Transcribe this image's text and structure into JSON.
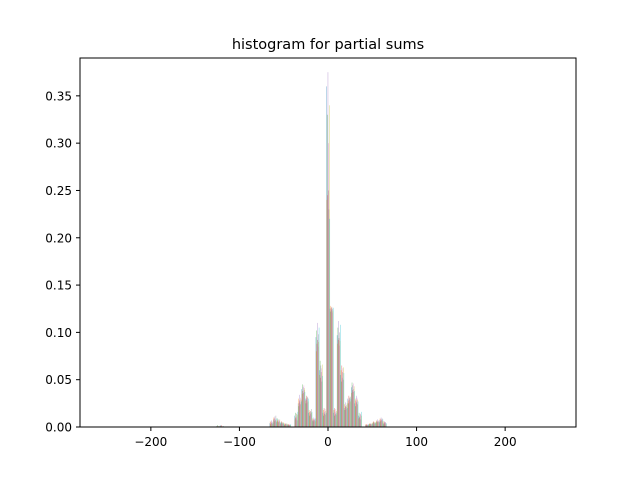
{
  "chart_data": {
    "type": "bar",
    "title": "histogram for partial sums",
    "xlabel": "",
    "ylabel": "",
    "xlim": [
      -280,
      280
    ],
    "ylim": [
      0,
      0.39
    ],
    "grid": false,
    "legend": "none",
    "xticks": [
      -200,
      -100,
      0,
      100,
      200
    ],
    "xtick_labels": [
      "−200",
      "−100",
      "0",
      "100",
      "200"
    ],
    "yticks": [
      0.0,
      0.05,
      0.1,
      0.15,
      0.2,
      0.25,
      0.3,
      0.35
    ],
    "ytick_labels": [
      "0.00",
      "0.05",
      "0.10",
      "0.15",
      "0.20",
      "0.25",
      "0.30",
      "0.35"
    ],
    "bar_opacity": 0.5,
    "series_colors": [
      "#1f77b4",
      "#ff7f0e",
      "#2ca02c",
      "#d62728",
      "#9467bd",
      "#8c564b",
      "#e377c2",
      "#7f7f7f",
      "#bcbd22",
      "#17becf"
    ],
    "bins": [
      {
        "x": -124,
        "values": [
          0.001,
          0.0,
          0.002,
          0.001,
          0.0,
          0.001,
          0.0,
          0.001,
          0.0,
          0.001
        ]
      },
      {
        "x": -120,
        "values": [
          0.002,
          0.001,
          0.001,
          0.002,
          0.001,
          0.0,
          0.001,
          0.0,
          0.001,
          0.001
        ]
      },
      {
        "x": -64,
        "values": [
          0.004,
          0.006,
          0.003,
          0.005,
          0.007,
          0.004,
          0.006,
          0.005,
          0.003,
          0.004
        ]
      },
      {
        "x": -60,
        "values": [
          0.008,
          0.01,
          0.006,
          0.009,
          0.011,
          0.007,
          0.008,
          0.012,
          0.006,
          0.009
        ]
      },
      {
        "x": -56,
        "values": [
          0.005,
          0.007,
          0.009,
          0.006,
          0.008,
          0.005,
          0.007,
          0.006,
          0.008,
          0.005
        ]
      },
      {
        "x": -52,
        "values": [
          0.004,
          0.003,
          0.005,
          0.006,
          0.004,
          0.005,
          0.003,
          0.004,
          0.005,
          0.004
        ]
      },
      {
        "x": -48,
        "values": [
          0.003,
          0.004,
          0.002,
          0.003,
          0.004,
          0.003,
          0.002,
          0.003,
          0.004,
          0.003
        ]
      },
      {
        "x": -44,
        "values": [
          0.002,
          0.003,
          0.002,
          0.003,
          0.002,
          0.002,
          0.003,
          0.002,
          0.002,
          0.003
        ]
      },
      {
        "x": -36,
        "values": [
          0.012,
          0.008,
          0.015,
          0.01,
          0.009,
          0.014,
          0.011,
          0.007,
          0.013,
          0.016
        ]
      },
      {
        "x": -32,
        "values": [
          0.025,
          0.03,
          0.022,
          0.028,
          0.034,
          0.026,
          0.031,
          0.024,
          0.029,
          0.027
        ]
      },
      {
        "x": -28,
        "values": [
          0.04,
          0.035,
          0.045,
          0.038,
          0.042,
          0.036,
          0.044,
          0.039,
          0.041,
          0.037
        ]
      },
      {
        "x": -24,
        "values": [
          0.03,
          0.028,
          0.025,
          0.033,
          0.029,
          0.031,
          0.026,
          0.032,
          0.027,
          0.03
        ]
      },
      {
        "x": -20,
        "values": [
          0.015,
          0.018,
          0.012,
          0.016,
          0.014,
          0.017,
          0.013,
          0.019,
          0.015,
          0.016
        ]
      },
      {
        "x": -16,
        "values": [
          0.007,
          0.009,
          0.006,
          0.008,
          0.01,
          0.007,
          0.009,
          0.008,
          0.006,
          0.009
        ]
      },
      {
        "x": -12,
        "values": [
          0.095,
          0.08,
          0.102,
          0.088,
          0.11,
          0.092,
          0.085,
          0.098,
          0.09,
          0.105
        ]
      },
      {
        "x": -8,
        "values": [
          0.06,
          0.055,
          0.07,
          0.052,
          0.065,
          0.058,
          0.062,
          0.048,
          0.066,
          0.054
        ]
      },
      {
        "x": -4,
        "values": [
          0.015,
          0.018,
          0.012,
          0.02,
          0.016,
          0.014,
          0.019,
          0.013,
          0.017,
          0.015
        ]
      },
      {
        "x": 0,
        "values": [
          0.36,
          0.24,
          0.33,
          0.245,
          0.375,
          0.25,
          0.3,
          0.23,
          0.34,
          0.22
        ]
      },
      {
        "x": 4,
        "values": [
          0.125,
          0.128,
          0.122,
          0.126,
          0.124,
          0.127,
          0.121,
          0.125,
          0.123,
          0.126
        ]
      },
      {
        "x": 8,
        "values": [
          0.015,
          0.018,
          0.012,
          0.02,
          0.016,
          0.014,
          0.019,
          0.013,
          0.017,
          0.015
        ]
      },
      {
        "x": 12,
        "values": [
          0.097,
          0.088,
          0.105,
          0.092,
          0.112,
          0.094,
          0.086,
          0.1,
          0.091,
          0.108
        ]
      },
      {
        "x": 16,
        "values": [
          0.055,
          0.06,
          0.048,
          0.065,
          0.052,
          0.058,
          0.062,
          0.05,
          0.063,
          0.057
        ]
      },
      {
        "x": 20,
        "values": [
          0.02,
          0.024,
          0.018,
          0.022,
          0.026,
          0.021,
          0.019,
          0.023,
          0.025,
          0.02
        ]
      },
      {
        "x": 24,
        "values": [
          0.03,
          0.028,
          0.025,
          0.033,
          0.029,
          0.031,
          0.026,
          0.032,
          0.027,
          0.03
        ]
      },
      {
        "x": 28,
        "values": [
          0.042,
          0.036,
          0.047,
          0.039,
          0.044,
          0.037,
          0.046,
          0.04,
          0.043,
          0.038
        ]
      },
      {
        "x": 32,
        "values": [
          0.025,
          0.03,
          0.022,
          0.028,
          0.033,
          0.026,
          0.031,
          0.024,
          0.029,
          0.027
        ]
      },
      {
        "x": 36,
        "values": [
          0.012,
          0.009,
          0.015,
          0.01,
          0.011,
          0.014,
          0.013,
          0.008,
          0.012,
          0.016
        ]
      },
      {
        "x": 44,
        "values": [
          0.002,
          0.003,
          0.002,
          0.003,
          0.002,
          0.002,
          0.003,
          0.002,
          0.002,
          0.003
        ]
      },
      {
        "x": 48,
        "values": [
          0.003,
          0.004,
          0.003,
          0.003,
          0.004,
          0.003,
          0.002,
          0.003,
          0.004,
          0.003
        ]
      },
      {
        "x": 52,
        "values": [
          0.004,
          0.005,
          0.005,
          0.006,
          0.004,
          0.005,
          0.003,
          0.004,
          0.005,
          0.004
        ]
      },
      {
        "x": 56,
        "values": [
          0.005,
          0.007,
          0.006,
          0.006,
          0.008,
          0.005,
          0.007,
          0.006,
          0.005,
          0.005
        ]
      },
      {
        "x": 60,
        "values": [
          0.007,
          0.009,
          0.006,
          0.008,
          0.01,
          0.007,
          0.008,
          0.009,
          0.006,
          0.008
        ]
      },
      {
        "x": 64,
        "values": [
          0.004,
          0.006,
          0.003,
          0.005,
          0.006,
          0.004,
          0.005,
          0.005,
          0.003,
          0.004
        ]
      }
    ]
  }
}
